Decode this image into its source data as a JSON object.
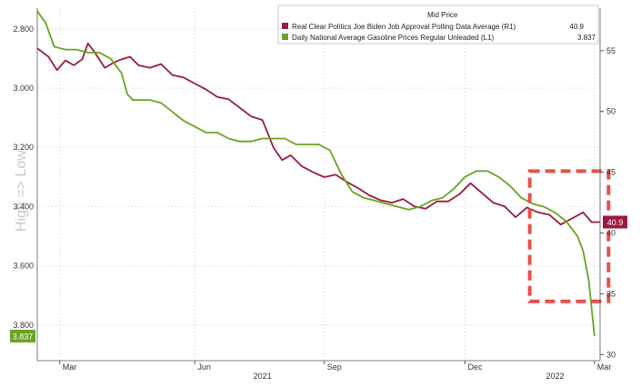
{
  "chart_data": {
    "type": "line",
    "legend": {
      "title": "Mid Price",
      "entries": [
        {
          "label": "Real Clear Politics Joe Biden Job Approval Polling Data Average (R1)",
          "value": "40.9",
          "color": "#9b1b3c"
        },
        {
          "label": "Daily National Average Gasoline Prices Regular Unleaded (L1)",
          "value": "3.837",
          "color": "#6aa323"
        }
      ]
    },
    "watermark_text": "High => Low",
    "left_axis": {
      "label": "",
      "ticks": [
        "2.800",
        "3.000",
        "3.200",
        "3.400",
        "3.600",
        "3.800"
      ],
      "values": [
        2.8,
        3.0,
        3.2,
        3.4,
        3.6,
        3.8
      ],
      "min": 2.73,
      "max": 3.92,
      "inverted": true,
      "last_badge": "3.837"
    },
    "right_axis": {
      "label": "",
      "ticks": [
        "55",
        "50",
        "45",
        "40",
        "35",
        "30"
      ],
      "values": [
        55,
        50,
        45,
        40,
        35,
        30
      ],
      "min": 29.5,
      "max": 58.5,
      "last_badge": "40.9"
    },
    "x_axis": {
      "month_ticks": [
        "Mar",
        "Jun",
        "Sep",
        "Dec",
        "Mar"
      ],
      "month_positions": [
        0.04,
        0.28,
        0.51,
        0.76,
        0.99
      ],
      "year_labels": [
        "2021",
        "2022"
      ],
      "year_positions": [
        0.4,
        0.92
      ]
    },
    "series": [
      {
        "name": "Real Clear Politics Joe Biden Job Approval Polling Data Average (R1)",
        "color": "#9b1b3c",
        "x": [
          0.0,
          0.02,
          0.035,
          0.05,
          0.065,
          0.08,
          0.09,
          0.1,
          0.11,
          0.12,
          0.135,
          0.15,
          0.165,
          0.18,
          0.2,
          0.22,
          0.24,
          0.26,
          0.28,
          0.3,
          0.32,
          0.34,
          0.36,
          0.38,
          0.4,
          0.42,
          0.435,
          0.45,
          0.47,
          0.49,
          0.51,
          0.53,
          0.55,
          0.57,
          0.59,
          0.61,
          0.63,
          0.65,
          0.67,
          0.69,
          0.71,
          0.73,
          0.75,
          0.77,
          0.79,
          0.81,
          0.83,
          0.85,
          0.87,
          0.89,
          0.91,
          0.93,
          0.95,
          0.97,
          0.985,
          1.0
        ],
        "values": [
          55.2,
          54.5,
          53.4,
          54.2,
          53.8,
          54.3,
          55.6,
          55.0,
          54.3,
          53.6,
          54.0,
          54.3,
          54.5,
          53.8,
          53.6,
          53.9,
          53.0,
          52.8,
          52.3,
          51.8,
          51.2,
          51.0,
          50.3,
          49.6,
          49.3,
          47.0,
          46.0,
          46.4,
          45.5,
          45.0,
          44.6,
          44.8,
          44.2,
          43.7,
          43.1,
          42.7,
          42.5,
          42.8,
          42.2,
          42.0,
          42.6,
          42.6,
          43.2,
          44.1,
          43.3,
          42.5,
          42.2,
          41.3,
          42.1,
          41.7,
          41.5,
          40.7,
          41.2,
          41.7,
          40.9,
          40.9
        ]
      },
      {
        "name": "Daily National Average Gasoline Prices Regular Unleaded (L1)",
        "color": "#6aa323",
        "x": [
          0.0,
          0.015,
          0.03,
          0.05,
          0.07,
          0.09,
          0.11,
          0.13,
          0.15,
          0.16,
          0.17,
          0.2,
          0.22,
          0.24,
          0.26,
          0.28,
          0.3,
          0.32,
          0.34,
          0.36,
          0.38,
          0.4,
          0.42,
          0.44,
          0.46,
          0.48,
          0.5,
          0.52,
          0.54,
          0.56,
          0.58,
          0.6,
          0.62,
          0.64,
          0.66,
          0.68,
          0.7,
          0.72,
          0.74,
          0.76,
          0.78,
          0.8,
          0.82,
          0.84,
          0.86,
          0.88,
          0.9,
          0.92,
          0.94,
          0.96,
          0.97,
          0.98,
          0.99
        ],
        "values": [
          2.74,
          2.78,
          2.86,
          2.87,
          2.87,
          2.88,
          2.88,
          2.9,
          2.95,
          3.02,
          3.04,
          3.04,
          3.05,
          3.08,
          3.11,
          3.13,
          3.15,
          3.15,
          3.17,
          3.18,
          3.18,
          3.17,
          3.17,
          3.17,
          3.19,
          3.19,
          3.19,
          3.21,
          3.29,
          3.35,
          3.37,
          3.38,
          3.39,
          3.4,
          3.41,
          3.4,
          3.38,
          3.37,
          3.34,
          3.3,
          3.28,
          3.28,
          3.3,
          3.33,
          3.37,
          3.39,
          3.4,
          3.42,
          3.45,
          3.5,
          3.55,
          3.65,
          3.837
        ]
      }
    ],
    "highlight_box": {
      "x_start": 0.875,
      "x_end": 1.015,
      "left_axis_top": 3.28,
      "left_axis_bottom": 3.72,
      "color": "#e4514a",
      "style": "dashed"
    },
    "grid": true
  }
}
